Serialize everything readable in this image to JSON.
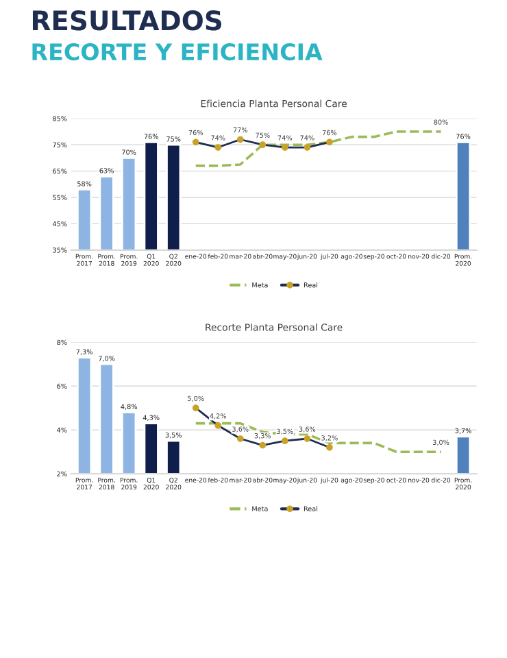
{
  "chart_data": [
    {
      "type": "bar",
      "title": "Eficiencia Planta Personal Care",
      "annotations": [
        "RESULTADOS",
        "RECORTE Y EFICIENCIA"
      ],
      "categories": [
        "Prom.\n2017",
        "Prom.\n2018",
        "Prom.\n2019",
        "Q1\n2020",
        "Q2\n2020",
        "ene-20",
        "feb-20",
        "mar-20",
        "abr-20",
        "may-20",
        "jun-20",
        "jul-20",
        "ago-20",
        "sep-20",
        "oct-20",
        "nov-20",
        "dic-20",
        "Prom.\n2020"
      ],
      "series": [
        {
          "colors": [
            "#8db4e2",
            "#8db4e2",
            "#8db4e2",
            "#0f1e4b",
            "#0f1e4b",
            null,
            null,
            null,
            null,
            null,
            null,
            null,
            null,
            null,
            null,
            null,
            null,
            "#4f81bd"
          ],
          "values": [
            58,
            63,
            70,
            76,
            75,
            null,
            null,
            null,
            null,
            null,
            null,
            null,
            null,
            null,
            null,
            null,
            null,
            76
          ],
          "value_labels": [
            "58%",
            "63%",
            "70%",
            "76%",
            "75%",
            null,
            null,
            null,
            null,
            null,
            null,
            null,
            null,
            null,
            null,
            null,
            null,
            "76%"
          ]
        },
        {
          "type": "line",
          "name": "Meta",
          "color": "#9bbb59",
          "line_style": "dashed",
          "marker": "none",
          "values": [
            null,
            null,
            null,
            null,
            null,
            67,
            67,
            67.5,
            75,
            75,
            75,
            76,
            78,
            78,
            80,
            80,
            80,
            null
          ],
          "value_labels": [
            null,
            null,
            null,
            null,
            null,
            null,
            null,
            null,
            null,
            null,
            null,
            null,
            null,
            null,
            null,
            null,
            "80%",
            null
          ]
        },
        {
          "type": "line",
          "name": "Real",
          "color": "#1f2d50",
          "line_style": "solid",
          "marker": "circle",
          "values": [
            null,
            null,
            null,
            null,
            null,
            76,
            74,
            77,
            75,
            74,
            74,
            76,
            null,
            null,
            null,
            null,
            null,
            null
          ],
          "value_labels": [
            null,
            null,
            null,
            null,
            null,
            "76%",
            "74%",
            "77%",
            "75%",
            "74%",
            "74%",
            "76%",
            null,
            null,
            null,
            null,
            null,
            null
          ]
        }
      ],
      "ylim": [
        35,
        85
      ],
      "yticks": [
        {
          "value": 35,
          "label": "35%"
        },
        {
          "value": 45,
          "label": "45%"
        },
        {
          "value": 55,
          "label": "55%"
        },
        {
          "value": 65,
          "label": "65%"
        },
        {
          "value": 75,
          "label": "75%"
        },
        {
          "value": 85,
          "label": "85%"
        }
      ],
      "grid": "y",
      "legend": "bottom"
    },
    {
      "type": "bar",
      "title": "Recorte Planta Personal Care",
      "categories": [
        "Prom.\n2017",
        "Prom.\n2018",
        "Prom.\n2019",
        "Q1\n2020",
        "Q2\n2020",
        "ene-20",
        "feb-20",
        "mar-20",
        "abr-20",
        "may-20",
        "jun-20",
        "jul-20",
        "ago-20",
        "sep-20",
        "oct-20",
        "nov-20",
        "dic-20",
        "Prom.\n2020"
      ],
      "series": [
        {
          "colors": [
            "#8db4e2",
            "#8db4e2",
            "#8db4e2",
            "#0f1e4b",
            "#0f1e4b",
            null,
            null,
            null,
            null,
            null,
            null,
            null,
            null,
            null,
            null,
            null,
            null,
            "#4f81bd"
          ],
          "values": [
            7.3,
            7.0,
            4.8,
            4.3,
            3.5,
            null,
            null,
            null,
            null,
            null,
            null,
            null,
            null,
            null,
            null,
            null,
            null,
            3.7
          ],
          "value_labels": [
            "7,3%",
            "7,0%",
            "4,8%",
            "4,3%",
            "3,5%",
            null,
            null,
            null,
            null,
            null,
            null,
            null,
            null,
            null,
            null,
            null,
            null,
            "3,7%"
          ]
        },
        {
          "type": "line",
          "name": "Meta",
          "color": "#9bbb59",
          "line_style": "dashed",
          "marker": "none",
          "values": [
            null,
            null,
            null,
            null,
            null,
            4.3,
            4.3,
            4.3,
            3.9,
            3.8,
            3.8,
            3.4,
            3.4,
            3.4,
            3.0,
            3.0,
            3.0,
            null
          ],
          "value_labels": [
            null,
            null,
            null,
            null,
            null,
            null,
            null,
            null,
            null,
            null,
            null,
            null,
            null,
            null,
            null,
            null,
            "3,0%",
            null
          ]
        },
        {
          "type": "line",
          "name": "Real",
          "color": "#1f2d50",
          "line_style": "solid",
          "marker": "circle",
          "values": [
            null,
            null,
            null,
            null,
            null,
            5.0,
            4.2,
            3.6,
            3.3,
            3.5,
            3.6,
            3.2,
            null,
            null,
            null,
            null,
            null,
            null
          ],
          "value_labels": [
            null,
            null,
            null,
            null,
            null,
            "5,0%",
            "4,2%",
            "3,6%",
            "3,3%",
            "3,5%",
            "3,6%",
            "3,2%",
            null,
            null,
            null,
            null,
            null,
            null
          ]
        }
      ],
      "ylim": [
        2,
        8
      ],
      "yticks": [
        {
          "value": 2,
          "label": "2%"
        },
        {
          "value": 4,
          "label": "4%"
        },
        {
          "value": 6,
          "label": "6%"
        },
        {
          "value": 8,
          "label": "8%"
        }
      ],
      "grid": "y",
      "legend": "bottom"
    }
  ]
}
